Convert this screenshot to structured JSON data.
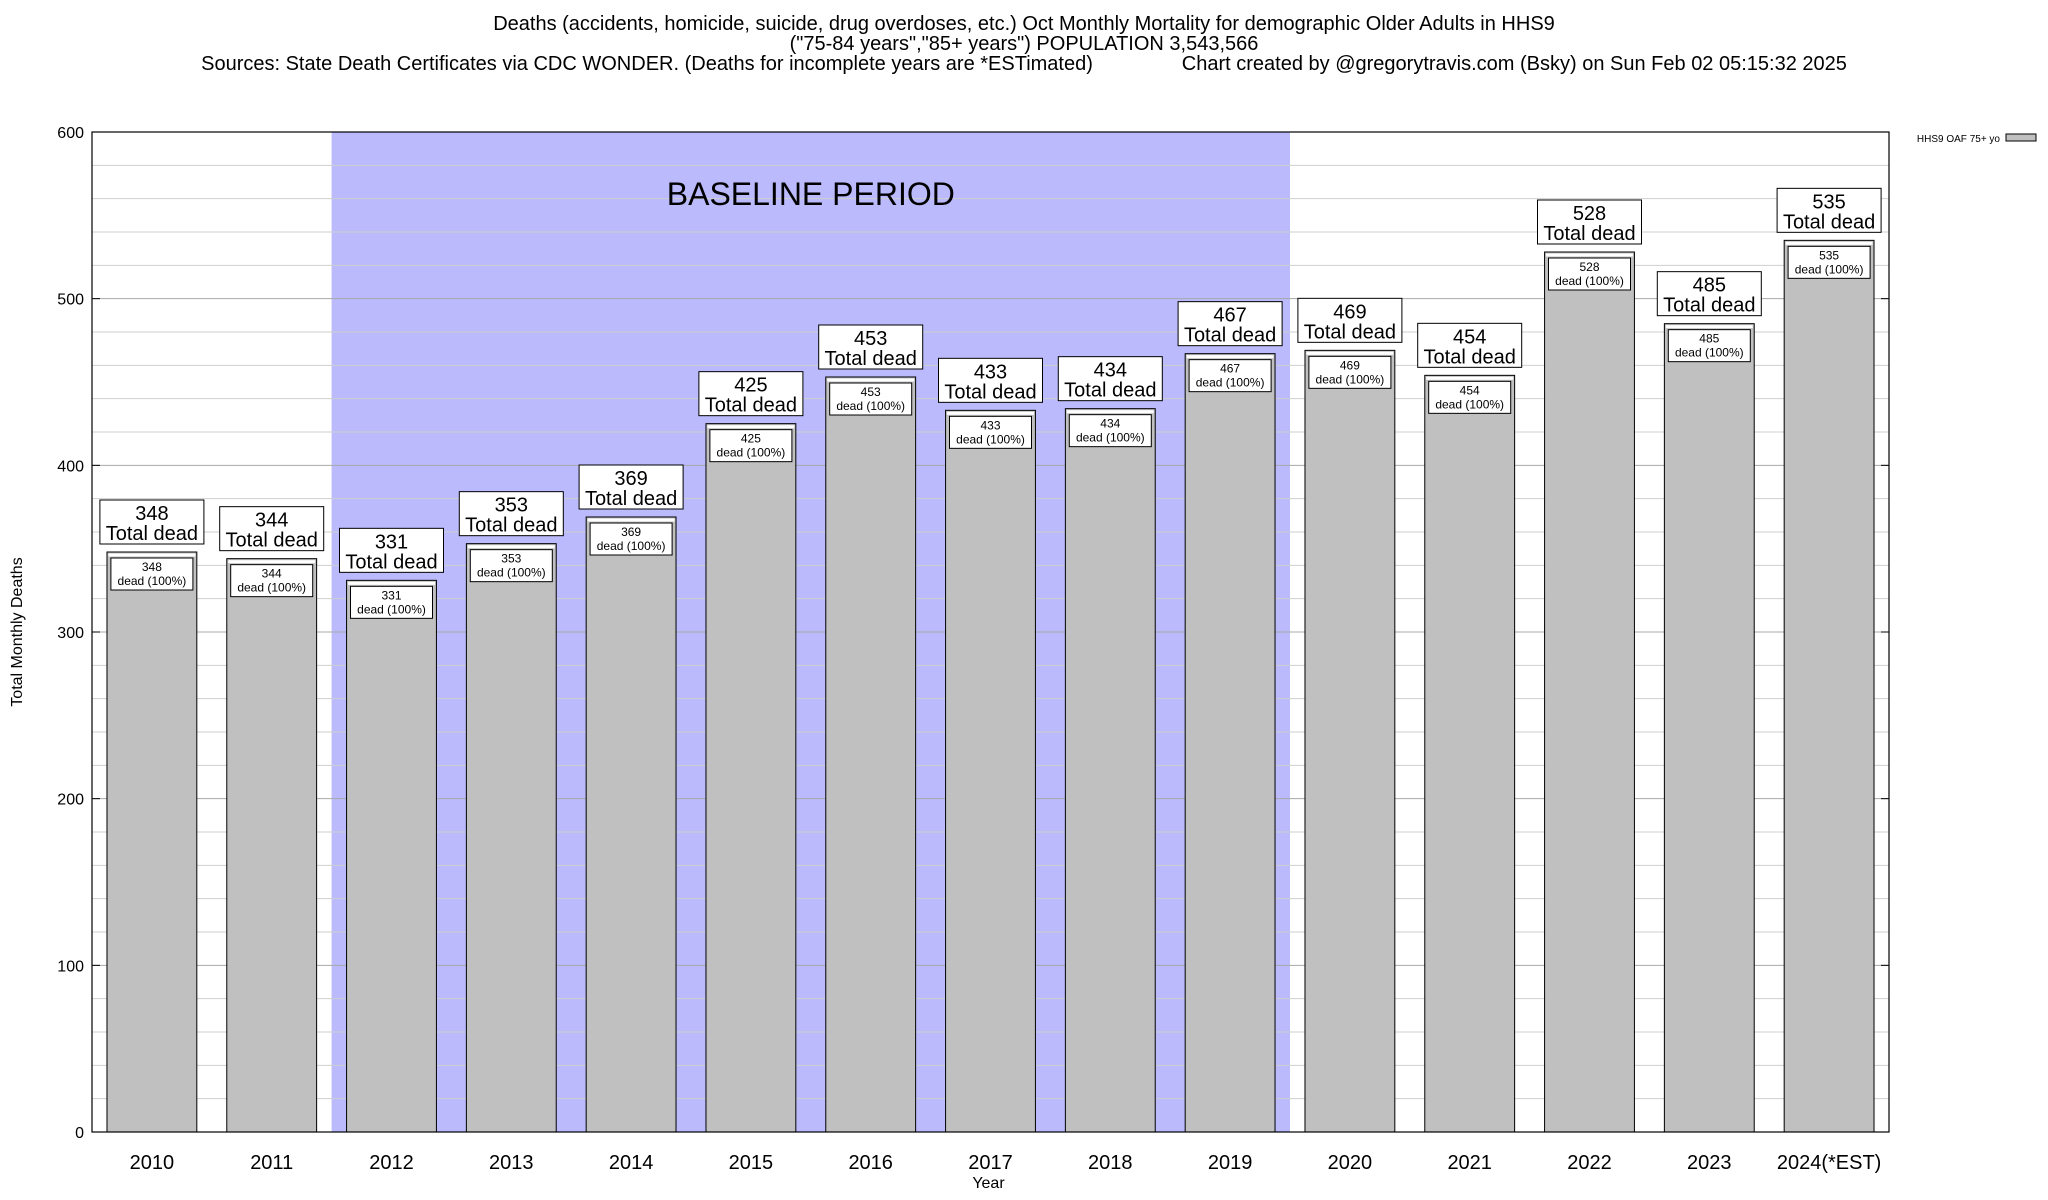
{
  "header": {
    "line1": "Deaths (accidents, homicide, suicide, drug overdoses, etc.) Oct Monthly Mortality for demographic Older Adults in HHS9",
    "line2": "(\"75-84 years\",\"85+ years\") POPULATION 3,543,566",
    "line3": "Sources: State Death Certificates via CDC WONDER. (Deaths for incomplete years are *ESTimated)                Chart created by @gregorytravis.com (Bsky) on Sun Feb 02 05:15:32 2025"
  },
  "chart_data": {
    "type": "bar",
    "xlabel": "Year",
    "ylabel": "Total Monthly Deaths",
    "ylim": [
      0,
      600
    ],
    "yticks": [
      0,
      100,
      200,
      300,
      400,
      500,
      600
    ],
    "grid": true,
    "categories": [
      "2010",
      "2011",
      "2012",
      "2013",
      "2014",
      "2015",
      "2016",
      "2017",
      "2018",
      "2019",
      "2020",
      "2021",
      "2022",
      "2023",
      "2024(*EST)"
    ],
    "series": [
      {
        "name": "HHS9 OAF 75+ yo",
        "values": [
          348,
          344,
          331,
          353,
          369,
          425,
          453,
          433,
          434,
          467,
          469,
          454,
          528,
          485,
          535
        ],
        "color": "#c0c0c0"
      }
    ],
    "total_label_suffix": "Total dead",
    "inner_label_suffix": "dead (100%)",
    "baseline": {
      "label": "BASELINE PERIOD",
      "start_category": "2012",
      "end_category": "2019",
      "color": "#babafc"
    },
    "legend_position": "top-right"
  }
}
